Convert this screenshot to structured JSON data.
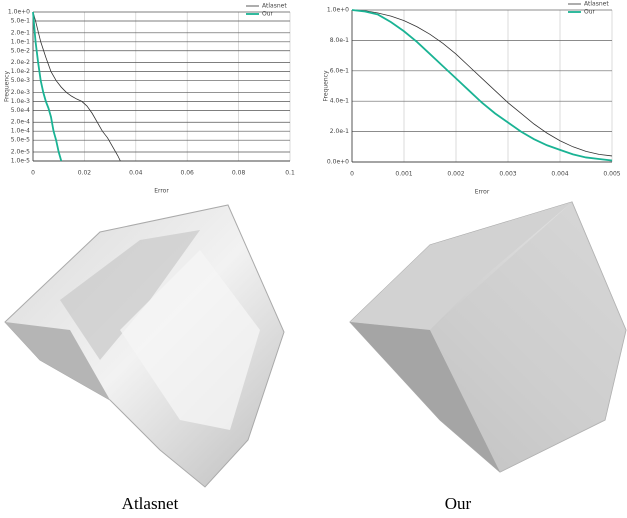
{
  "chart_data": [
    {
      "type": "line",
      "xlabel": "Error",
      "ylabel": "Frequency",
      "yscale": "log",
      "grid": true,
      "legend": "upper right",
      "xlim": [
        0,
        0.1
      ],
      "xticks": [
        0,
        0.02,
        0.04,
        0.06,
        0.08,
        0.1
      ],
      "ylim": [
        1e-05,
        1
      ],
      "yticks": [
        {
          "value": 1,
          "label": "1.0e+0"
        },
        {
          "value": 0.5,
          "label": "5.0e-1"
        },
        {
          "value": 0.2,
          "label": "2.0e-1"
        },
        {
          "value": 0.1,
          "label": "1.0e-1"
        },
        {
          "value": 0.05,
          "label": "5.0e-2"
        },
        {
          "value": 0.02,
          "label": "2.0e-2"
        },
        {
          "value": 0.01,
          "label": "1.0e-2"
        },
        {
          "value": 0.005,
          "label": "5.0e-3"
        },
        {
          "value": 0.002,
          "label": "2.0e-3"
        },
        {
          "value": 0.001,
          "label": "1.0e-3"
        },
        {
          "value": 0.0005,
          "label": "5.0e-4"
        },
        {
          "value": 0.0002,
          "label": "2.0e-4"
        },
        {
          "value": 0.0001,
          "label": "1.0e-4"
        },
        {
          "value": 5e-05,
          "label": "5.0e-5"
        },
        {
          "value": 2e-05,
          "label": "2.0e-5"
        },
        {
          "value": 1e-05,
          "label": "1.0e-5"
        }
      ],
      "series": [
        {
          "name": "Atlasnet",
          "color": "#333333",
          "x": [
            0,
            0.001,
            0.003,
            0.005,
            0.007,
            0.009,
            0.011,
            0.013,
            0.015,
            0.017,
            0.019,
            0.021,
            0.023,
            0.025,
            0.027,
            0.029,
            0.031,
            0.033,
            0.034
          ],
          "values": [
            1,
            0.5,
            0.1,
            0.03,
            0.01,
            0.005,
            0.003,
            0.002,
            0.0015,
            0.0012,
            0.001,
            0.0007,
            0.0004,
            0.0002,
            0.0001,
            6e-05,
            3e-05,
            1.5e-05,
            1e-05
          ]
        },
        {
          "name": "Our",
          "color": "#1ab394",
          "x": [
            0,
            0.001,
            0.002,
            0.003,
            0.004,
            0.005,
            0.006,
            0.007,
            0.008,
            0.009,
            0.01,
            0.011
          ],
          "values": [
            1,
            0.1,
            0.02,
            0.005,
            0.002,
            0.001,
            0.0006,
            0.0003,
            0.0001,
            5e-05,
            2e-05,
            1e-05
          ]
        }
      ]
    },
    {
      "type": "line",
      "xlabel": "Error",
      "ylabel": "Frequency",
      "yscale": "linear",
      "grid": true,
      "legend": "upper right",
      "xlim": [
        0,
        0.005
      ],
      "xticks": [
        0,
        0.001,
        0.002,
        0.003,
        0.004,
        0.005
      ],
      "ylim": [
        0,
        1
      ],
      "yticks": [
        {
          "value": 0,
          "label": "0.0e+0"
        },
        {
          "value": 0.2,
          "label": "2.0e-1"
        },
        {
          "value": 0.4,
          "label": "4.0e-1"
        },
        {
          "value": 0.6,
          "label": "6.0e-1"
        },
        {
          "value": 0.8,
          "label": "8.0e-1"
        },
        {
          "value": 1,
          "label": "1.0e+0"
        }
      ],
      "series": [
        {
          "name": "Atlasnet",
          "color": "#333333",
          "x": [
            0,
            0.00025,
            0.0005,
            0.00075,
            0.001,
            0.00125,
            0.0015,
            0.00175,
            0.002,
            0.00225,
            0.0025,
            0.00275,
            0.003,
            0.00325,
            0.0035,
            0.00375,
            0.004,
            0.00425,
            0.0045,
            0.00475,
            0.005
          ],
          "values": [
            1,
            0.995,
            0.98,
            0.96,
            0.93,
            0.89,
            0.84,
            0.78,
            0.71,
            0.63,
            0.55,
            0.47,
            0.39,
            0.32,
            0.25,
            0.19,
            0.14,
            0.1,
            0.07,
            0.05,
            0.04
          ]
        },
        {
          "name": "Our",
          "color": "#1ab394",
          "x": [
            0,
            0.00025,
            0.0005,
            0.00075,
            0.001,
            0.00125,
            0.0015,
            0.00175,
            0.002,
            0.00225,
            0.0025,
            0.00275,
            0.003,
            0.00325,
            0.0035,
            0.00375,
            0.004,
            0.00425,
            0.0045,
            0.00475,
            0.005
          ],
          "values": [
            1,
            0.99,
            0.97,
            0.92,
            0.86,
            0.79,
            0.71,
            0.63,
            0.55,
            0.47,
            0.39,
            0.32,
            0.26,
            0.2,
            0.15,
            0.11,
            0.08,
            0.05,
            0.03,
            0.02,
            0.01
          ]
        }
      ]
    }
  ],
  "panels": [
    {
      "caption": "Atlasnet"
    },
    {
      "caption": "Our"
    }
  ]
}
